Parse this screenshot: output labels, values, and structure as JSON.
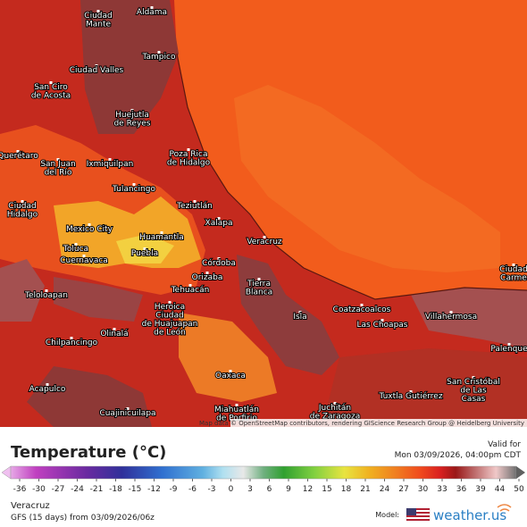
{
  "map": {
    "cities": [
      {
        "lines": [
          "Aldama"
        ]
      },
      {
        "lines": [
          "Ciudad",
          "Mante"
        ]
      },
      {
        "lines": [
          "Tampico"
        ]
      },
      {
        "lines": [
          "Ciudad Valles"
        ]
      },
      {
        "lines": [
          "San Ciro",
          "de Acosta"
        ]
      },
      {
        "lines": [
          "Huejutla",
          "de Reyes"
        ]
      },
      {
        "lines": [
          "Poza Rica",
          "de Hidalgo"
        ]
      },
      {
        "lines": [
          "Querétaro"
        ]
      },
      {
        "lines": [
          "Ixmiquilpan"
        ]
      },
      {
        "lines": [
          "San Juan",
          "del Río"
        ]
      },
      {
        "lines": [
          "Tulancingo"
        ]
      },
      {
        "lines": [
          "Ciudad",
          "Hidalgo"
        ]
      },
      {
        "lines": [
          "Teziutlán"
        ]
      },
      {
        "lines": [
          "Xalapa"
        ]
      },
      {
        "lines": [
          "Mexico City"
        ]
      },
      {
        "lines": [
          "Toluca"
        ]
      },
      {
        "lines": [
          "Huamantla"
        ]
      },
      {
        "lines": [
          "Cuernavaca"
        ]
      },
      {
        "lines": [
          "Puebla"
        ]
      },
      {
        "lines": [
          "Veracruz"
        ]
      },
      {
        "lines": [
          "Córdoba"
        ]
      },
      {
        "lines": [
          "Orizaba"
        ]
      },
      {
        "lines": [
          "Tehuacán"
        ]
      },
      {
        "lines": [
          "Tierra",
          "Blanca"
        ]
      },
      {
        "lines": [
          "Teloloapan"
        ]
      },
      {
        "lines": [
          "Heroica",
          "Ciudad",
          "de Huajuapan",
          "de León"
        ]
      },
      {
        "lines": [
          "Coatzacoalcos"
        ]
      },
      {
        "lines": [
          "Las Choapas"
        ]
      },
      {
        "lines": [
          "Villahermosa"
        ]
      },
      {
        "lines": [
          "Isla"
        ]
      },
      {
        "lines": [
          "Ciudad",
          "Carme"
        ]
      },
      {
        "lines": [
          "Chilpancingo"
        ]
      },
      {
        "lines": [
          "Olinalá"
        ]
      },
      {
        "lines": [
          "Palenque"
        ]
      },
      {
        "lines": [
          "Oaxaca"
        ]
      },
      {
        "lines": [
          "Acapulco"
        ]
      },
      {
        "lines": [
          "San Cristóbal",
          "de Las",
          "Casas"
        ]
      },
      {
        "lines": [
          "Tuxtla Gutiérrez"
        ]
      },
      {
        "lines": [
          "Cuajinicuilapa"
        ]
      },
      {
        "lines": [
          "Miahuatlán",
          "de Porfirio"
        ]
      },
      {
        "lines": [
          "Juchitán",
          "de Zaragoza"
        ]
      }
    ],
    "attribution": "Map data © OpenStreetMap contributors, rendering GIScience Research Group @ Heidelberg University"
  },
  "legend": {
    "title": "Temperature (°C)",
    "valid_label": "Valid for",
    "valid_time": "Mon 03/09/2026, 04:00pm CDT",
    "ticks": [
      -36,
      -30,
      -27,
      -24,
      -21,
      -18,
      -15,
      -12,
      -9,
      -6,
      -3,
      0,
      3,
      6,
      9,
      12,
      15,
      18,
      21,
      24,
      27,
      30,
      33,
      36,
      39,
      44,
      50
    ]
  },
  "footer": {
    "location": "Veracruz",
    "model_run": "GFS (15 days) from 03/09/2026/06z",
    "model_label": "Model:",
    "brand": "weather.us"
  }
}
